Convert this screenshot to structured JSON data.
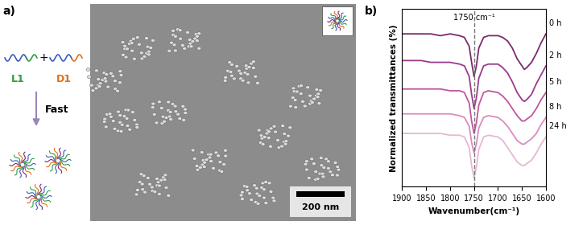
{
  "panel_a": {
    "label": "a)",
    "components": [
      "L1",
      "D1"
    ],
    "operator": "+",
    "arrow_label": "Fast",
    "scale_bar": "200 nm"
  },
  "chart_data": {
    "type": "line",
    "panel_label": "b)",
    "x_label": "Wavenumber(cm⁻¹)",
    "y_label": "Normalized transmittances (%)",
    "x": [
      1900,
      1880,
      1860,
      1840,
      1820,
      1800,
      1780,
      1770,
      1760,
      1755,
      1750,
      1745,
      1740,
      1730,
      1720,
      1700,
      1690,
      1680,
      1670,
      1660,
      1650,
      1645,
      1640,
      1630,
      1620,
      1610,
      1600
    ],
    "xlim": [
      1900,
      1600
    ],
    "xticks": [
      1900,
      1850,
      1800,
      1750,
      1700,
      1650,
      1600
    ],
    "ylim": [
      0,
      100
    ],
    "tick_labels": "x",
    "annotations": [
      {
        "text": "1750 cm⁻¹",
        "x": 1750,
        "line_style": "dashed"
      }
    ],
    "series": [
      {
        "name": "0 h",
        "color": "#7b2a6e",
        "values": [
          86,
          86,
          86,
          86,
          85,
          86,
          85,
          84,
          79,
          70,
          62,
          68,
          78,
          84,
          85,
          85,
          84,
          82,
          78,
          72,
          68,
          66,
          67,
          70,
          75,
          81,
          86
        ]
      },
      {
        "name": "2 h",
        "color": "#9c3a8c",
        "values": [
          71,
          71,
          71,
          70,
          70,
          70,
          69,
          68,
          62,
          52,
          44,
          50,
          61,
          68,
          69,
          69,
          67,
          64,
          59,
          53,
          49,
          48,
          49,
          52,
          58,
          63,
          68
        ]
      },
      {
        "name": "5 h",
        "color": "#c0569f",
        "values": [
          55,
          55,
          55,
          55,
          55,
          54,
          54,
          53,
          47,
          37,
          30,
          36,
          46,
          53,
          54,
          53,
          51,
          48,
          44,
          40,
          37,
          37,
          38,
          40,
          44,
          49,
          53
        ]
      },
      {
        "name": "8 h",
        "color": "#d98cbf",
        "values": [
          41,
          41,
          41,
          41,
          41,
          41,
          40,
          39,
          34,
          25,
          19,
          24,
          33,
          39,
          40,
          39,
          37,
          34,
          30,
          26,
          24,
          24,
          25,
          27,
          30,
          35,
          39
        ]
      },
      {
        "name": "24 h",
        "color": "#e6b8d3",
        "values": [
          30,
          30,
          30,
          30,
          30,
          29,
          29,
          28,
          22,
          12,
          5,
          11,
          21,
          28,
          29,
          28,
          26,
          22,
          18,
          14,
          12,
          12,
          13,
          15,
          19,
          24,
          28
        ]
      }
    ]
  }
}
